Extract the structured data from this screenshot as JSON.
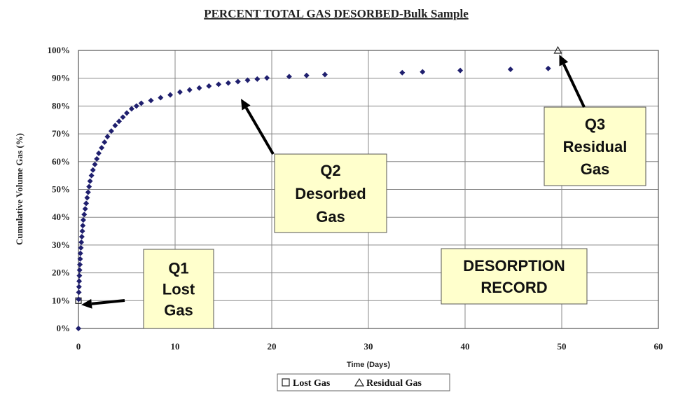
{
  "chart_data": {
    "type": "scatter",
    "title": "PERCENT TOTAL GAS DESORBED-Bulk Sample",
    "xlabel": "Time (Days)",
    "ylabel": "Cumulative Volume Gas (%)",
    "xlim": [
      0,
      60
    ],
    "ylim": [
      0,
      100
    ],
    "xticks": [
      "0",
      "10",
      "20",
      "30",
      "40",
      "50",
      "60"
    ],
    "yticks": [
      "0%",
      "10%",
      "20%",
      "30%",
      "40%",
      "50%",
      "60%",
      "70%",
      "80%",
      "90%",
      "100%"
    ],
    "grid": true,
    "legend_position": "bottom-center",
    "colors": {
      "desorbed": "#1f1f6e",
      "arrow": "#000000",
      "note_fill": "#ffffcc"
    },
    "series": [
      {
        "name": "Lost Gas",
        "marker": "square",
        "points": [
          [
            0.0,
            10.0
          ]
        ]
      },
      {
        "name": "Residual Gas",
        "marker": "triangle",
        "points": [
          [
            49.6,
            100.0
          ]
        ]
      },
      {
        "marker": "diamond",
        "points": [
          [
            0.0,
            0.0
          ],
          [
            0.02,
            10.5
          ],
          [
            0.04,
            13
          ],
          [
            0.06,
            15
          ],
          [
            0.08,
            17
          ],
          [
            0.1,
            19
          ],
          [
            0.12,
            21
          ],
          [
            0.15,
            23
          ],
          [
            0.18,
            25
          ],
          [
            0.2,
            27
          ],
          [
            0.25,
            29
          ],
          [
            0.3,
            31
          ],
          [
            0.35,
            33
          ],
          [
            0.4,
            35
          ],
          [
            0.45,
            37
          ],
          [
            0.5,
            39
          ],
          [
            0.6,
            41
          ],
          [
            0.7,
            43
          ],
          [
            0.8,
            45
          ],
          [
            0.9,
            47
          ],
          [
            1.0,
            49
          ],
          [
            1.1,
            51
          ],
          [
            1.2,
            53
          ],
          [
            1.35,
            55
          ],
          [
            1.5,
            57
          ],
          [
            1.7,
            59
          ],
          [
            1.9,
            61
          ],
          [
            2.1,
            63
          ],
          [
            2.4,
            65
          ],
          [
            2.7,
            67
          ],
          [
            3.0,
            69
          ],
          [
            3.4,
            71
          ],
          [
            3.8,
            73
          ],
          [
            4.2,
            74.5
          ],
          [
            4.6,
            76
          ],
          [
            5.0,
            77.5
          ],
          [
            5.5,
            79
          ],
          [
            6.0,
            80
          ],
          [
            6.5,
            81
          ],
          [
            7.5,
            82
          ],
          [
            8.5,
            83
          ],
          [
            9.5,
            84
          ],
          [
            10.5,
            85
          ],
          [
            11.5,
            85.8
          ],
          [
            12.5,
            86.5
          ],
          [
            13.5,
            87.2
          ],
          [
            14.5,
            87.8
          ],
          [
            15.5,
            88.3
          ],
          [
            16.5,
            88.8
          ],
          [
            17.5,
            89.3
          ],
          [
            18.5,
            89.7
          ],
          [
            19.5,
            90.1
          ],
          [
            21.8,
            90.6
          ],
          [
            23.6,
            91.0
          ],
          [
            25.5,
            91.3
          ],
          [
            33.5,
            92.0
          ],
          [
            35.6,
            92.3
          ],
          [
            39.5,
            92.8
          ],
          [
            44.7,
            93.2
          ],
          [
            48.6,
            93.5
          ]
        ]
      }
    ],
    "annotations": [
      {
        "id": "q1",
        "lines": [
          "Q1",
          "Lost",
          "Gas"
        ]
      },
      {
        "id": "q2",
        "lines": [
          "Q2",
          "Desorbed",
          "Gas"
        ]
      },
      {
        "id": "q3",
        "lines": [
          "Q3",
          "Residual",
          "Gas"
        ]
      },
      {
        "id": "record",
        "lines": [
          "DESORPTION",
          "RECORD"
        ]
      }
    ]
  }
}
